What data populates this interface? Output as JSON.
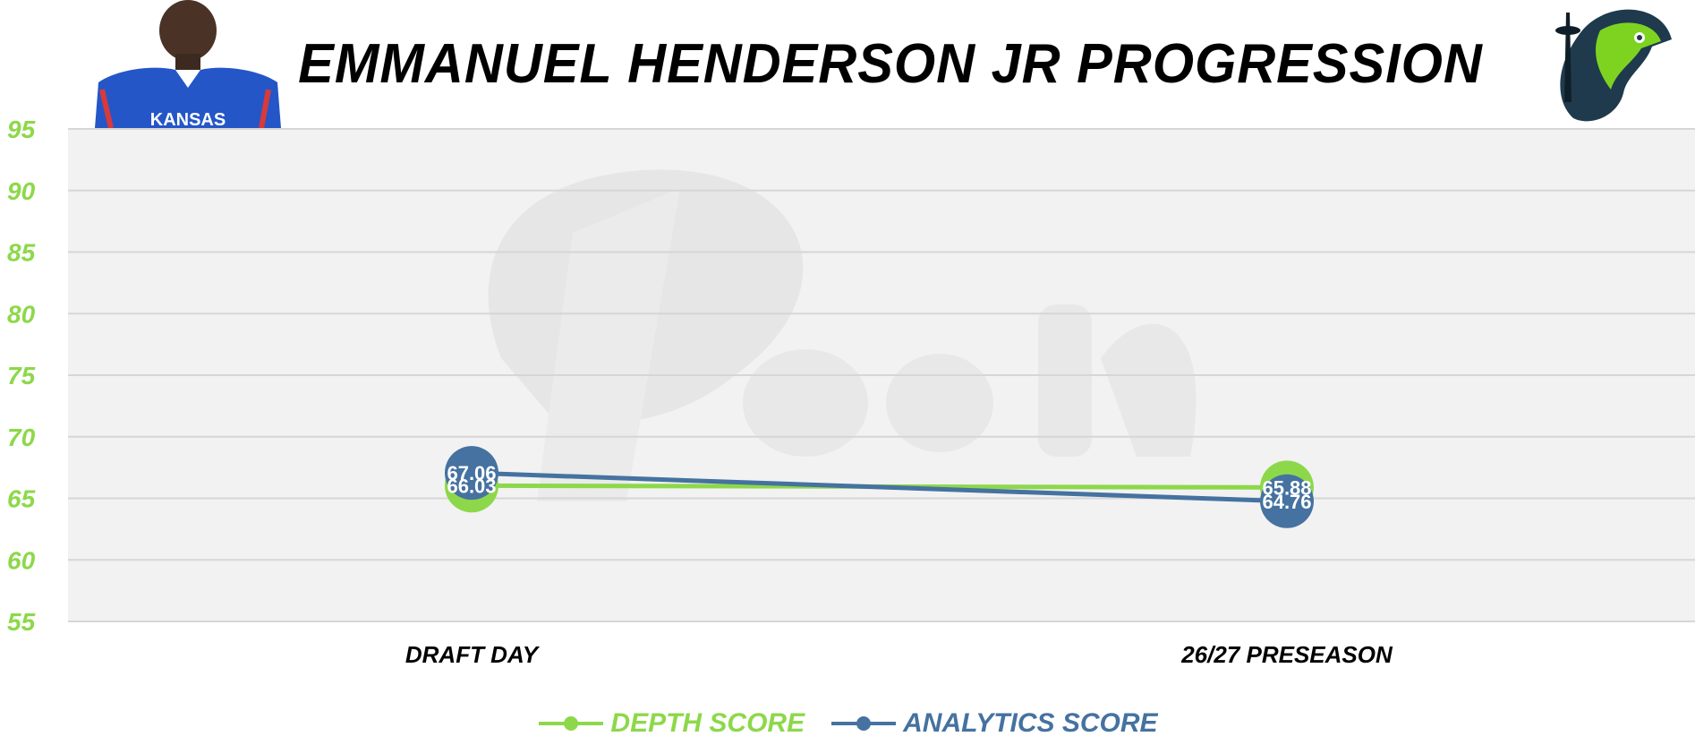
{
  "colors": {
    "depth": "#8dd84a",
    "analytics": "#4572a0",
    "plot_bg": "#f2f2f2",
    "grid": "#d6d6d6",
    "watermark": "#e6e6e6",
    "title": "#000000"
  },
  "images": {
    "player_photo": "player-headshot-kansas-jersey",
    "team_logo": "seahawk-space-needle-logo",
    "watermark": "depth-script-logo"
  },
  "chart_data": {
    "type": "line",
    "title": "EMMANUEL HENDERSON JR PROGRESSION",
    "categories": [
      "DRAFT DAY",
      "26/27 PRESEASON"
    ],
    "series": [
      {
        "name": "DEPTH SCORE",
        "values": [
          66.03,
          65.88
        ],
        "color": "#8dd84a"
      },
      {
        "name": "ANALYTICS SCORE",
        "values": [
          67.06,
          64.76
        ],
        "color": "#4572a0"
      }
    ],
    "yticks": [
      "95",
      "90",
      "85",
      "80",
      "75",
      "70",
      "65",
      "60",
      "55"
    ],
    "ylim": [
      55,
      95
    ],
    "grid": true,
    "legend_position": "bottom",
    "data_labels": true
  }
}
